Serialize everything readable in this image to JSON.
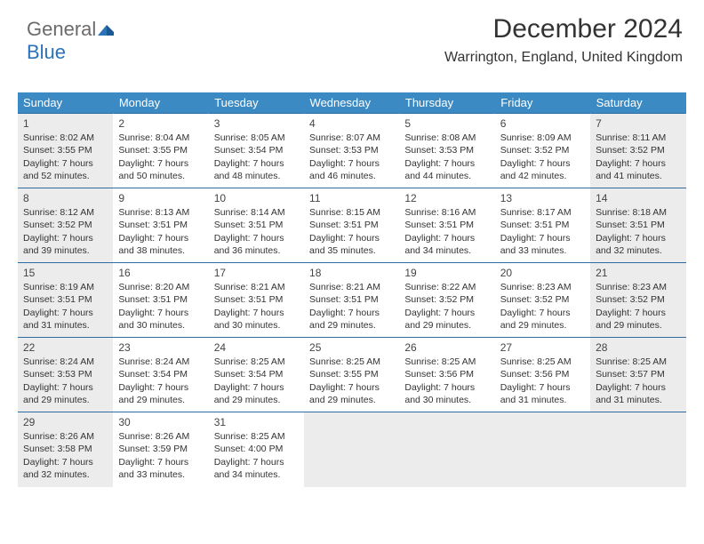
{
  "logo": {
    "part1": "General",
    "part2": "Blue"
  },
  "header": {
    "title": "December 2024",
    "location": "Warrington, England, United Kingdom"
  },
  "colors": {
    "header_bg": "#3b8ac4",
    "header_text": "#ffffff",
    "row_border": "#2b6ca3",
    "shaded_bg": "#ececec",
    "logo_gray": "#6b6b6b",
    "logo_blue": "#2b73b8"
  },
  "weekdays": [
    "Sunday",
    "Monday",
    "Tuesday",
    "Wednesday",
    "Thursday",
    "Friday",
    "Saturday"
  ],
  "weeks": [
    [
      {
        "num": "1",
        "shaded": true,
        "sunrise": "Sunrise: 8:02 AM",
        "sunset": "Sunset: 3:55 PM",
        "day1": "Daylight: 7 hours",
        "day2": "and 52 minutes."
      },
      {
        "num": "2",
        "shaded": false,
        "sunrise": "Sunrise: 8:04 AM",
        "sunset": "Sunset: 3:55 PM",
        "day1": "Daylight: 7 hours",
        "day2": "and 50 minutes."
      },
      {
        "num": "3",
        "shaded": false,
        "sunrise": "Sunrise: 8:05 AM",
        "sunset": "Sunset: 3:54 PM",
        "day1": "Daylight: 7 hours",
        "day2": "and 48 minutes."
      },
      {
        "num": "4",
        "shaded": false,
        "sunrise": "Sunrise: 8:07 AM",
        "sunset": "Sunset: 3:53 PM",
        "day1": "Daylight: 7 hours",
        "day2": "and 46 minutes."
      },
      {
        "num": "5",
        "shaded": false,
        "sunrise": "Sunrise: 8:08 AM",
        "sunset": "Sunset: 3:53 PM",
        "day1": "Daylight: 7 hours",
        "day2": "and 44 minutes."
      },
      {
        "num": "6",
        "shaded": false,
        "sunrise": "Sunrise: 8:09 AM",
        "sunset": "Sunset: 3:52 PM",
        "day1": "Daylight: 7 hours",
        "day2": "and 42 minutes."
      },
      {
        "num": "7",
        "shaded": true,
        "sunrise": "Sunrise: 8:11 AM",
        "sunset": "Sunset: 3:52 PM",
        "day1": "Daylight: 7 hours",
        "day2": "and 41 minutes."
      }
    ],
    [
      {
        "num": "8",
        "shaded": true,
        "sunrise": "Sunrise: 8:12 AM",
        "sunset": "Sunset: 3:52 PM",
        "day1": "Daylight: 7 hours",
        "day2": "and 39 minutes."
      },
      {
        "num": "9",
        "shaded": false,
        "sunrise": "Sunrise: 8:13 AM",
        "sunset": "Sunset: 3:51 PM",
        "day1": "Daylight: 7 hours",
        "day2": "and 38 minutes."
      },
      {
        "num": "10",
        "shaded": false,
        "sunrise": "Sunrise: 8:14 AM",
        "sunset": "Sunset: 3:51 PM",
        "day1": "Daylight: 7 hours",
        "day2": "and 36 minutes."
      },
      {
        "num": "11",
        "shaded": false,
        "sunrise": "Sunrise: 8:15 AM",
        "sunset": "Sunset: 3:51 PM",
        "day1": "Daylight: 7 hours",
        "day2": "and 35 minutes."
      },
      {
        "num": "12",
        "shaded": false,
        "sunrise": "Sunrise: 8:16 AM",
        "sunset": "Sunset: 3:51 PM",
        "day1": "Daylight: 7 hours",
        "day2": "and 34 minutes."
      },
      {
        "num": "13",
        "shaded": false,
        "sunrise": "Sunrise: 8:17 AM",
        "sunset": "Sunset: 3:51 PM",
        "day1": "Daylight: 7 hours",
        "day2": "and 33 minutes."
      },
      {
        "num": "14",
        "shaded": true,
        "sunrise": "Sunrise: 8:18 AM",
        "sunset": "Sunset: 3:51 PM",
        "day1": "Daylight: 7 hours",
        "day2": "and 32 minutes."
      }
    ],
    [
      {
        "num": "15",
        "shaded": true,
        "sunrise": "Sunrise: 8:19 AM",
        "sunset": "Sunset: 3:51 PM",
        "day1": "Daylight: 7 hours",
        "day2": "and 31 minutes."
      },
      {
        "num": "16",
        "shaded": false,
        "sunrise": "Sunrise: 8:20 AM",
        "sunset": "Sunset: 3:51 PM",
        "day1": "Daylight: 7 hours",
        "day2": "and 30 minutes."
      },
      {
        "num": "17",
        "shaded": false,
        "sunrise": "Sunrise: 8:21 AM",
        "sunset": "Sunset: 3:51 PM",
        "day1": "Daylight: 7 hours",
        "day2": "and 30 minutes."
      },
      {
        "num": "18",
        "shaded": false,
        "sunrise": "Sunrise: 8:21 AM",
        "sunset": "Sunset: 3:51 PM",
        "day1": "Daylight: 7 hours",
        "day2": "and 29 minutes."
      },
      {
        "num": "19",
        "shaded": false,
        "sunrise": "Sunrise: 8:22 AM",
        "sunset": "Sunset: 3:52 PM",
        "day1": "Daylight: 7 hours",
        "day2": "and 29 minutes."
      },
      {
        "num": "20",
        "shaded": false,
        "sunrise": "Sunrise: 8:23 AM",
        "sunset": "Sunset: 3:52 PM",
        "day1": "Daylight: 7 hours",
        "day2": "and 29 minutes."
      },
      {
        "num": "21",
        "shaded": true,
        "sunrise": "Sunrise: 8:23 AM",
        "sunset": "Sunset: 3:52 PM",
        "day1": "Daylight: 7 hours",
        "day2": "and 29 minutes."
      }
    ],
    [
      {
        "num": "22",
        "shaded": true,
        "sunrise": "Sunrise: 8:24 AM",
        "sunset": "Sunset: 3:53 PM",
        "day1": "Daylight: 7 hours",
        "day2": "and 29 minutes."
      },
      {
        "num": "23",
        "shaded": false,
        "sunrise": "Sunrise: 8:24 AM",
        "sunset": "Sunset: 3:54 PM",
        "day1": "Daylight: 7 hours",
        "day2": "and 29 minutes."
      },
      {
        "num": "24",
        "shaded": false,
        "sunrise": "Sunrise: 8:25 AM",
        "sunset": "Sunset: 3:54 PM",
        "day1": "Daylight: 7 hours",
        "day2": "and 29 minutes."
      },
      {
        "num": "25",
        "shaded": false,
        "sunrise": "Sunrise: 8:25 AM",
        "sunset": "Sunset: 3:55 PM",
        "day1": "Daylight: 7 hours",
        "day2": "and 29 minutes."
      },
      {
        "num": "26",
        "shaded": false,
        "sunrise": "Sunrise: 8:25 AM",
        "sunset": "Sunset: 3:56 PM",
        "day1": "Daylight: 7 hours",
        "day2": "and 30 minutes."
      },
      {
        "num": "27",
        "shaded": false,
        "sunrise": "Sunrise: 8:25 AM",
        "sunset": "Sunset: 3:56 PM",
        "day1": "Daylight: 7 hours",
        "day2": "and 31 minutes."
      },
      {
        "num": "28",
        "shaded": true,
        "sunrise": "Sunrise: 8:25 AM",
        "sunset": "Sunset: 3:57 PM",
        "day1": "Daylight: 7 hours",
        "day2": "and 31 minutes."
      }
    ],
    [
      {
        "num": "29",
        "shaded": true,
        "sunrise": "Sunrise: 8:26 AM",
        "sunset": "Sunset: 3:58 PM",
        "day1": "Daylight: 7 hours",
        "day2": "and 32 minutes."
      },
      {
        "num": "30",
        "shaded": false,
        "sunrise": "Sunrise: 8:26 AM",
        "sunset": "Sunset: 3:59 PM",
        "day1": "Daylight: 7 hours",
        "day2": "and 33 minutes."
      },
      {
        "num": "31",
        "shaded": false,
        "sunrise": "Sunrise: 8:25 AM",
        "sunset": "Sunset: 4:00 PM",
        "day1": "Daylight: 7 hours",
        "day2": "and 34 minutes."
      },
      {
        "empty": true
      },
      {
        "empty": true
      },
      {
        "empty": true
      },
      {
        "empty": true
      }
    ]
  ]
}
